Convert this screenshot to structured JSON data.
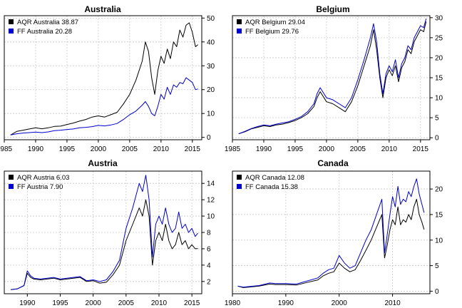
{
  "chart_data": [
    {
      "type": "line",
      "title": "Australia",
      "xlim": [
        1985,
        2016.5
      ],
      "ylim": [
        -1,
        51
      ],
      "x_ticks": [
        1985,
        1990,
        1995,
        2000,
        2005,
        2010,
        2015
      ],
      "y_ticks": [
        0,
        10,
        20,
        30,
        40,
        50
      ],
      "grid": true,
      "legend_position": "top-left",
      "series": [
        {
          "name": "AQR Australia 38.87",
          "color": "#000000",
          "x": [
            1986.0,
            1987.0,
            1988.0,
            1989.0,
            1990.0,
            1991.0,
            1992.0,
            1993.0,
            1994.0,
            1995.0,
            1996.0,
            1997.0,
            1998.0,
            1999.0,
            2000.0,
            2001.0,
            2002.0,
            2003.0,
            2004.0,
            2005.0,
            2006.0,
            2007.0,
            2007.5,
            2008.0,
            2008.5,
            2009.0,
            2009.5,
            2010.0,
            2010.5,
            2011.0,
            2011.5,
            2012.0,
            2012.5,
            2013.0,
            2013.5,
            2014.0,
            2014.5,
            2015.0,
            2015.5,
            2015.9
          ],
          "y": [
            1,
            2.5,
            3.0,
            3.5,
            4.0,
            3.6,
            4.0,
            4.6,
            4.7,
            5.4,
            6.0,
            6.8,
            7.5,
            8.5,
            9.0,
            8.5,
            9.5,
            10.5,
            14.0,
            18.0,
            24.0,
            32.0,
            40.0,
            36.0,
            25.0,
            18.0,
            28.0,
            34.0,
            31.0,
            37.0,
            33.0,
            40.0,
            38.0,
            45.0,
            42.0,
            47.0,
            48.0,
            44.0,
            38.0,
            38.87
          ]
        },
        {
          "name": "FF Australia 20.28",
          "color": "#0000cc",
          "x": [
            1986.0,
            1987.0,
            1988.0,
            1989.0,
            1990.0,
            1991.0,
            1992.0,
            1993.0,
            1994.0,
            1995.0,
            1996.0,
            1997.0,
            1998.0,
            1999.0,
            2000.0,
            2001.0,
            2002.0,
            2003.0,
            2004.0,
            2005.0,
            2006.0,
            2007.0,
            2007.5,
            2008.0,
            2008.5,
            2009.0,
            2009.5,
            2010.0,
            2010.5,
            2011.0,
            2011.5,
            2012.0,
            2012.5,
            2013.0,
            2013.5,
            2014.0,
            2014.5,
            2015.0,
            2015.5,
            2015.9
          ],
          "y": [
            1,
            1.5,
            1.8,
            2.0,
            2.2,
            2.0,
            2.3,
            2.8,
            3.0,
            3.3,
            3.5,
            4.0,
            4.2,
            4.5,
            5.0,
            4.8,
            5.2,
            5.8,
            7.5,
            9.5,
            11.0,
            13.5,
            15.0,
            13.0,
            10.0,
            9.0,
            13.0,
            18.0,
            16.0,
            21.0,
            18.0,
            22.0,
            21.0,
            23.0,
            22.5,
            25.0,
            24.0,
            23.0,
            20.0,
            20.28
          ]
        }
      ]
    },
    {
      "type": "line",
      "title": "Belgium",
      "xlim": [
        1985,
        2016.5
      ],
      "ylim": [
        -0.5,
        30.5
      ],
      "x_ticks": [
        1985,
        1990,
        1995,
        2000,
        2005,
        2010,
        2015
      ],
      "y_ticks": [
        0,
        5,
        10,
        15,
        20,
        25,
        30
      ],
      "grid": true,
      "legend_position": "top-left",
      "series": [
        {
          "name": "AQR Belgium 29.04",
          "color": "#000000",
          "x": [
            1986.0,
            1987.0,
            1988.0,
            1989.0,
            1990.0,
            1991.0,
            1992.0,
            1993.0,
            1994.0,
            1995.0,
            1996.0,
            1997.0,
            1998.0,
            1998.5,
            1999.0,
            2000.0,
            2001.0,
            2002.0,
            2003.0,
            2004.0,
            2005.0,
            2006.0,
            2007.0,
            2007.5,
            2008.0,
            2008.5,
            2009.0,
            2009.5,
            2010.0,
            2010.5,
            2011.0,
            2011.5,
            2012.0,
            2012.5,
            2013.0,
            2013.5,
            2014.0,
            2014.5,
            2015.0,
            2015.5,
            2015.9
          ],
          "y": [
            1,
            1.5,
            2.2,
            2.6,
            3.0,
            2.8,
            3.2,
            3.4,
            3.8,
            4.3,
            5.0,
            6.0,
            7.8,
            10.0,
            11.5,
            9.0,
            8.5,
            7.5,
            6.5,
            9.0,
            13.0,
            18.0,
            23.0,
            27.0,
            22.0,
            15.0,
            10.0,
            15.0,
            17.0,
            15.5,
            18.0,
            14.0,
            17.5,
            19.0,
            22.0,
            21.0,
            24.0,
            25.5,
            27.0,
            26.5,
            29.04
          ]
        },
        {
          "name": "FF Belgium 29.76",
          "color": "#0000cc",
          "x": [
            1986.0,
            1987.0,
            1988.0,
            1989.0,
            1990.0,
            1991.0,
            1992.0,
            1993.0,
            1994.0,
            1995.0,
            1996.0,
            1997.0,
            1998.0,
            1998.5,
            1999.0,
            2000.0,
            2001.0,
            2002.0,
            2003.0,
            2004.0,
            2005.0,
            2006.0,
            2007.0,
            2007.5,
            2008.0,
            2008.5,
            2009.0,
            2009.5,
            2010.0,
            2010.5,
            2011.0,
            2011.5,
            2012.0,
            2012.5,
            2013.0,
            2013.5,
            2014.0,
            2014.5,
            2015.0,
            2015.5,
            2015.9
          ],
          "y": [
            1,
            1.6,
            2.3,
            2.8,
            3.2,
            3.0,
            3.4,
            3.7,
            4.0,
            4.6,
            5.3,
            6.5,
            8.5,
            11.0,
            12.5,
            10.0,
            9.5,
            8.5,
            7.5,
            10.0,
            14.5,
            19.5,
            25.0,
            28.5,
            24.0,
            16.0,
            11.0,
            16.0,
            18.0,
            16.5,
            19.5,
            15.0,
            18.5,
            20.0,
            23.0,
            22.0,
            25.0,
            26.5,
            28.0,
            27.5,
            29.76
          ]
        }
      ]
    },
    {
      "type": "line",
      "title": "Austria",
      "xlim": [
        1986.5,
        2016.5
      ],
      "ylim": [
        0.5,
        15.5
      ],
      "x_ticks": [
        1990,
        1995,
        2000,
        2005,
        2010,
        2015
      ],
      "y_ticks": [
        2,
        4,
        6,
        8,
        10,
        12,
        14
      ],
      "grid": true,
      "legend_position": "top-left",
      "series": [
        {
          "name": "AQR Austria 6.03",
          "color": "#000000",
          "x": [
            1987.5,
            1988.5,
            1989.5,
            1990.0,
            1990.5,
            1991.0,
            1992.0,
            1993.0,
            1994.0,
            1995.0,
            1996.0,
            1997.0,
            1998.0,
            1999.0,
            2000.0,
            2001.0,
            2002.0,
            2003.0,
            2004.0,
            2005.0,
            2006.0,
            2007.0,
            2007.5,
            2008.0,
            2008.5,
            2009.0,
            2009.5,
            2010.0,
            2010.5,
            2011.0,
            2011.5,
            2012.0,
            2012.5,
            2013.0,
            2013.5,
            2014.0,
            2014.5,
            2015.0,
            2015.5,
            2015.9
          ],
          "y": [
            1,
            1.1,
            1.5,
            3.0,
            2.5,
            2.3,
            2.2,
            2.3,
            2.4,
            2.2,
            2.3,
            2.4,
            2.5,
            2.0,
            2.1,
            1.8,
            1.9,
            2.8,
            4.0,
            7.0,
            9.0,
            11.0,
            10.0,
            12.0,
            10.0,
            4.0,
            7.0,
            8.0,
            7.0,
            9.0,
            7.0,
            6.0,
            6.5,
            8.0,
            6.5,
            7.0,
            6.0,
            6.5,
            6.0,
            6.03
          ]
        },
        {
          "name": "FF Austria 7.90",
          "color": "#0000cc",
          "x": [
            1987.5,
            1988.5,
            1989.5,
            1990.0,
            1990.5,
            1991.0,
            1992.0,
            1993.0,
            1994.0,
            1995.0,
            1996.0,
            1997.0,
            1998.0,
            1999.0,
            2000.0,
            2001.0,
            2002.0,
            2003.0,
            2004.0,
            2005.0,
            2006.0,
            2007.0,
            2007.5,
            2008.0,
            2008.5,
            2009.0,
            2009.5,
            2010.0,
            2010.5,
            2011.0,
            2011.5,
            2012.0,
            2012.5,
            2013.0,
            2013.5,
            2014.0,
            2014.5,
            2015.0,
            2015.5,
            2015.9
          ],
          "y": [
            1,
            1.1,
            1.5,
            3.3,
            2.7,
            2.4,
            2.3,
            2.4,
            2.5,
            2.3,
            2.4,
            2.5,
            2.6,
            2.1,
            2.2,
            2.0,
            2.2,
            3.2,
            4.6,
            8.5,
            11.0,
            14.0,
            13.0,
            15.0,
            12.0,
            5.0,
            9.0,
            10.0,
            9.0,
            11.0,
            9.0,
            8.0,
            8.5,
            10.5,
            8.5,
            9.0,
            8.0,
            8.5,
            7.5,
            7.9
          ]
        }
      ]
    },
    {
      "type": "line",
      "title": "Canada",
      "xlim": [
        1980,
        2017
      ],
      "ylim": [
        -0.5,
        23.5
      ],
      "x_ticks": [
        1980,
        1990,
        2000,
        2010
      ],
      "y_ticks": [
        0,
        5,
        10,
        15,
        20
      ],
      "grid": true,
      "legend_position": "top-left",
      "series": [
        {
          "name": "AQR Canada 12.08",
          "color": "#000000",
          "x": [
            1981.0,
            1982.0,
            1983.0,
            1985.0,
            1987.0,
            1988.0,
            1990.0,
            1992.0,
            1994.0,
            1996.0,
            1997.0,
            1998.0,
            1999.0,
            2000.0,
            2001.0,
            2002.0,
            2003.0,
            2004.0,
            2005.0,
            2006.0,
            2007.0,
            2008.0,
            2008.5,
            2009.0,
            2009.5,
            2010.0,
            2010.5,
            2011.0,
            2011.5,
            2012.0,
            2012.5,
            2013.0,
            2013.5,
            2014.0,
            2014.5,
            2015.0,
            2015.5,
            2015.9
          ],
          "y": [
            1,
            0.7,
            0.8,
            1.0,
            1.4,
            1.3,
            1.3,
            1.2,
            1.7,
            2.2,
            3.0,
            3.5,
            3.8,
            5.5,
            4.5,
            3.8,
            4.2,
            6.0,
            8.0,
            10.0,
            12.5,
            15.0,
            6.5,
            9.0,
            12.0,
            14.0,
            13.0,
            16.5,
            13.0,
            14.0,
            13.5,
            15.0,
            14.0,
            16.5,
            18.0,
            15.0,
            13.5,
            12.08
          ]
        },
        {
          "name": "FF Canada 15.38",
          "color": "#0000cc",
          "x": [
            1981.0,
            1982.0,
            1983.0,
            1985.0,
            1987.0,
            1988.0,
            1990.0,
            1992.0,
            1994.0,
            1996.0,
            1997.0,
            1998.0,
            1999.0,
            2000.0,
            2001.0,
            2002.0,
            2003.0,
            2004.0,
            2005.0,
            2006.0,
            2007.0,
            2008.0,
            2008.5,
            2009.0,
            2009.5,
            2010.0,
            2010.5,
            2011.0,
            2011.5,
            2012.0,
            2012.5,
            2013.0,
            2013.5,
            2014.0,
            2014.5,
            2015.0,
            2015.5,
            2015.9
          ],
          "y": [
            1,
            0.8,
            0.9,
            1.1,
            1.6,
            1.5,
            1.5,
            1.4,
            2.0,
            2.6,
            3.5,
            4.2,
            4.5,
            7.0,
            5.5,
            4.5,
            5.0,
            7.5,
            10.0,
            12.0,
            15.0,
            18.0,
            7.5,
            11.0,
            15.0,
            18.5,
            16.5,
            20.5,
            17.0,
            18.0,
            17.5,
            19.5,
            18.5,
            20.5,
            22.0,
            19.0,
            17.0,
            15.38
          ]
        }
      ]
    }
  ]
}
